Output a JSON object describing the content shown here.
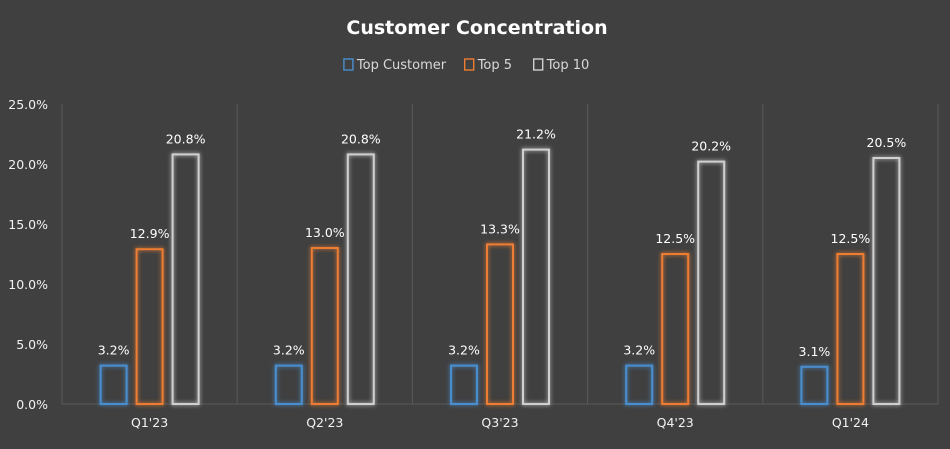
{
  "chart_data": {
    "type": "bar",
    "title": "Customer Concentration",
    "xlabel": "",
    "ylabel": "",
    "categories": [
      "Q1'23",
      "Q2'23",
      "Q3'23",
      "Q4'23",
      "Q1'24"
    ],
    "ylim": [
      0,
      25
    ],
    "yticks": [
      0,
      5,
      10,
      15,
      20,
      25
    ],
    "ytick_labels": [
      "0.0%",
      "5.0%",
      "10.0%",
      "15.0%",
      "20.0%",
      "25.0%"
    ],
    "grid": "vertical category separators",
    "legend_position": "top-center",
    "series": [
      {
        "name": "Top Customer",
        "color": "#4a8fd0",
        "values": [
          3.2,
          3.2,
          3.2,
          3.2,
          3.1
        ],
        "labels": [
          "3.2%",
          "3.2%",
          "3.2%",
          "3.2%",
          "3.1%"
        ]
      },
      {
        "name": "Top 5",
        "color": "#ed7d31",
        "values": [
          12.9,
          13.0,
          13.3,
          12.5,
          12.5
        ],
        "labels": [
          "12.9%",
          "13.0%",
          "13.3%",
          "12.5%",
          "12.5%"
        ]
      },
      {
        "name": "Top 10",
        "color": "#d0d0d0",
        "values": [
          20.8,
          20.8,
          21.2,
          20.2,
          20.5
        ],
        "labels": [
          "20.8%",
          "20.8%",
          "21.2%",
          "20.2%",
          "20.5%"
        ]
      }
    ]
  }
}
